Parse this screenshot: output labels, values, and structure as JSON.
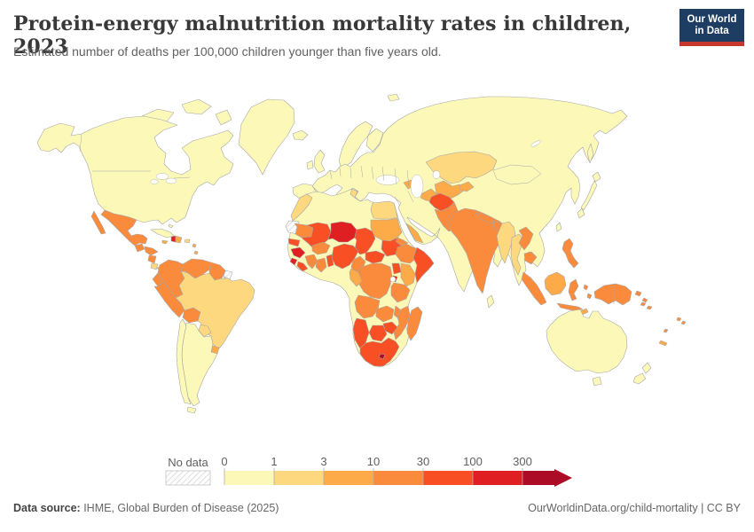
{
  "header": {
    "title": "Protein-energy malnutrition mortality rates in children, 2023",
    "subtitle": "Estimated number of deaths per 100,000 children younger than five years old.",
    "logo": {
      "line1": "Our World",
      "line2": "in Data",
      "bg_color": "#1d3d63",
      "accent_color": "#c5372c"
    }
  },
  "legend": {
    "no_data_label": "No data",
    "ticks": [
      "0",
      "1",
      "3",
      "10",
      "30",
      "100",
      "300"
    ],
    "bins": [
      {
        "range": "0-1",
        "color": "#fcf9b8"
      },
      {
        "range": "1-3",
        "color": "#fdd87f"
      },
      {
        "range": "3-10",
        "color": "#fdaa48"
      },
      {
        "range": "10-30",
        "color": "#fb8b3c"
      },
      {
        "range": "30-100",
        "color": "#f94f24"
      },
      {
        "range": "100-300",
        "color": "#e01f22"
      },
      {
        "range": "300+",
        "color": "#ad0c26"
      }
    ]
  },
  "map": {
    "sea_color": "#ffffff",
    "border_color": "#a6a6a6",
    "hatch_color": "#cccccc",
    "regions": [
      {
        "id": "greenland",
        "bin": 0
      },
      {
        "id": "arctic-islands-1",
        "bin": 0
      },
      {
        "id": "arctic-islands-2",
        "bin": 0
      },
      {
        "id": "arctic-islands-3",
        "bin": 0
      },
      {
        "id": "svalbard",
        "bin": 0
      },
      {
        "id": "canada-usa",
        "bin": 0
      },
      {
        "id": "mexico",
        "bin": 3
      },
      {
        "id": "baja-california",
        "bin": 3
      },
      {
        "id": "guatemala",
        "bin": 3
      },
      {
        "id": "honduras",
        "bin": 3
      },
      {
        "id": "nicaragua",
        "bin": 3
      },
      {
        "id": "costa-rica",
        "bin": 1
      },
      {
        "id": "panama",
        "bin": 2
      },
      {
        "id": "cuba",
        "bin": 0
      },
      {
        "id": "jamaica",
        "bin": 2
      },
      {
        "id": "haiti",
        "bin": 5
      },
      {
        "id": "dominican-republic",
        "bin": 2
      },
      {
        "id": "puerto-rico",
        "bin": 1
      },
      {
        "id": "bahamas",
        "bin": 0
      },
      {
        "id": "lesser-antilles",
        "bin": 2
      },
      {
        "id": "colombia",
        "bin": 3
      },
      {
        "id": "venezuela",
        "bin": 3
      },
      {
        "id": "guyana-suriname",
        "bin": 3
      },
      {
        "id": "french-guiana",
        "bin": null
      },
      {
        "id": "ecuador",
        "bin": 3
      },
      {
        "id": "peru",
        "bin": 3
      },
      {
        "id": "bolivia",
        "bin": 3
      },
      {
        "id": "brazil",
        "bin": 1
      },
      {
        "id": "paraguay",
        "bin": 1
      },
      {
        "id": "uruguay",
        "bin": 2
      },
      {
        "id": "argentina",
        "bin": 0
      },
      {
        "id": "chile",
        "bin": 0
      },
      {
        "id": "tierra-del-fuego",
        "bin": 0
      },
      {
        "id": "iceland",
        "bin": 0
      },
      {
        "id": "ireland",
        "bin": 0
      },
      {
        "id": "uk",
        "bin": 0
      },
      {
        "id": "iberia",
        "bin": 0
      },
      {
        "id": "norway-sweden",
        "bin": 0
      },
      {
        "id": "finland",
        "bin": 0
      },
      {
        "id": "eurasia",
        "bin": 0
      },
      {
        "id": "kazakhstan",
        "bin": 1
      },
      {
        "id": "uzbekistan",
        "bin": 2
      },
      {
        "id": "turkmenistan",
        "bin": 2
      },
      {
        "id": "kyrgyzstan-tajikistan",
        "bin": 2
      },
      {
        "id": "azerbaijan",
        "bin": 2
      },
      {
        "id": "afghanistan",
        "bin": 4
      },
      {
        "id": "pakistan",
        "bin": 3
      },
      {
        "id": "india",
        "bin": 3
      },
      {
        "id": "nepal",
        "bin": 3
      },
      {
        "id": "bangladesh",
        "bin": 3
      },
      {
        "id": "sri-lanka",
        "bin": 0
      },
      {
        "id": "myanmar",
        "bin": 1
      },
      {
        "id": "thailand",
        "bin": 1
      },
      {
        "id": "laos",
        "bin": 3
      },
      {
        "id": "cambodia",
        "bin": 3
      },
      {
        "id": "yemen",
        "bin": 2
      },
      {
        "id": "japan",
        "bin": 0
      },
      {
        "id": "sakhalin",
        "bin": 0
      },
      {
        "id": "taiwan",
        "bin": 0
      },
      {
        "id": "africa-base",
        "bin": 0
      },
      {
        "id": "morocco",
        "bin": 1
      },
      {
        "id": "tunisia",
        "bin": 1
      },
      {
        "id": "egypt",
        "bin": 1
      },
      {
        "id": "western-sahara",
        "bin": null
      },
      {
        "id": "mauritania",
        "bin": 3
      },
      {
        "id": "mali",
        "bin": 4
      },
      {
        "id": "niger",
        "bin": 5
      },
      {
        "id": "chad",
        "bin": 4
      },
      {
        "id": "sudan",
        "bin": 2
      },
      {
        "id": "senegal",
        "bin": 4
      },
      {
        "id": "guinea",
        "bin": 5
      },
      {
        "id": "sierra-leone",
        "bin": 5
      },
      {
        "id": "liberia",
        "bin": 4
      },
      {
        "id": "ivory-coast",
        "bin": 3
      },
      {
        "id": "ghana",
        "bin": 3
      },
      {
        "id": "burkina-faso",
        "bin": 3
      },
      {
        "id": "benin-togo",
        "bin": 4
      },
      {
        "id": "nigeria",
        "bin": 4
      },
      {
        "id": "cameroon",
        "bin": 3
      },
      {
        "id": "central-african-republic",
        "bin": 4
      },
      {
        "id": "south-sudan",
        "bin": 4
      },
      {
        "id": "eritrea",
        "bin": 3
      },
      {
        "id": "ethiopia",
        "bin": 3
      },
      {
        "id": "somalia",
        "bin": 4
      },
      {
        "id": "kenya",
        "bin": 2
      },
      {
        "id": "uganda",
        "bin": 4
      },
      {
        "id": "rwanda-burundi",
        "bin": 5
      },
      {
        "id": "drc",
        "bin": 3
      },
      {
        "id": "gabon-congo",
        "bin": 2
      },
      {
        "id": "tanzania",
        "bin": 3
      },
      {
        "id": "angola",
        "bin": 3
      },
      {
        "id": "zambia",
        "bin": 3
      },
      {
        "id": "malawi",
        "bin": 3
      },
      {
        "id": "mozambique",
        "bin": 3
      },
      {
        "id": "zimbabwe",
        "bin": 4
      },
      {
        "id": "botswana",
        "bin": 4
      },
      {
        "id": "namibia",
        "bin": 4
      },
      {
        "id": "south-africa",
        "bin": 4
      },
      {
        "id": "lesotho",
        "bin": 6
      },
      {
        "id": "madagascar",
        "bin": 3
      },
      {
        "id": "philippines",
        "bin": 3
      },
      {
        "id": "sumatra",
        "bin": 3
      },
      {
        "id": "java",
        "bin": 3
      },
      {
        "id": "borneo",
        "bin": 2
      },
      {
        "id": "sulawesi",
        "bin": 3
      },
      {
        "id": "moluccas",
        "bin": 3
      },
      {
        "id": "timor",
        "bin": 2
      },
      {
        "id": "new-guinea",
        "bin": 3
      },
      {
        "id": "png-islands",
        "bin": 3
      },
      {
        "id": "australia",
        "bin": 0
      },
      {
        "id": "tasmania",
        "bin": 0
      },
      {
        "id": "new-zealand",
        "bin": 0
      },
      {
        "id": "fiji",
        "bin": 3
      },
      {
        "id": "vanuatu",
        "bin": 3
      },
      {
        "id": "solomon-islands",
        "bin": 3
      },
      {
        "id": "new-caledonia",
        "bin": 2
      }
    ]
  },
  "footer": {
    "source_label": "Data source:",
    "source_value": " IHME, Global Burden of Disease (2025)",
    "credit": "OurWorldinData.org/child-mortality | CC BY"
  }
}
